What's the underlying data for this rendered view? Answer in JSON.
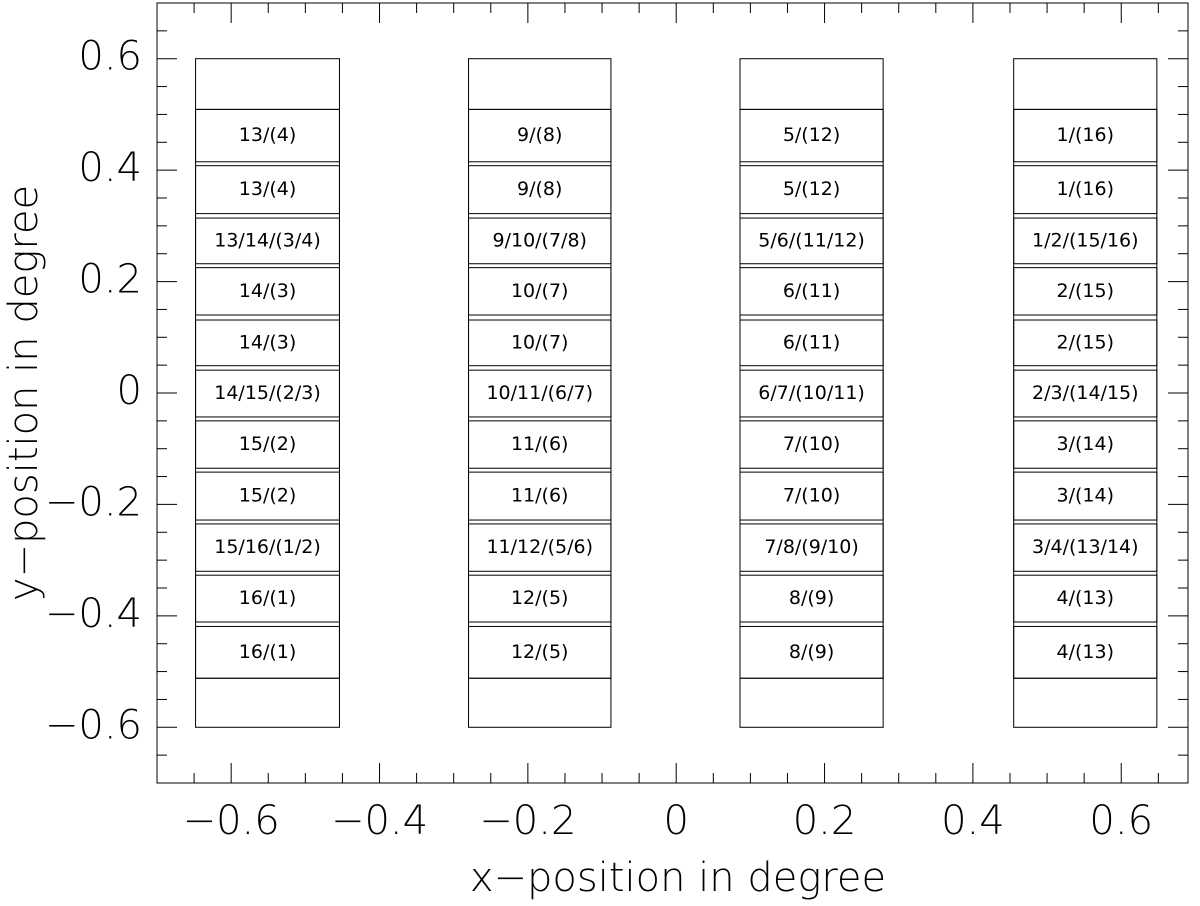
{
  "chart_data": {
    "type": "boxes",
    "xlabel": "x−position in degree",
    "ylabel": "y−position in degree",
    "xlim": [
      -0.7,
      0.69
    ],
    "ylim": [
      -0.7,
      0.7
    ],
    "xticks": [
      {
        "value": -0.6,
        "label": "−0.6"
      },
      {
        "value": -0.4,
        "label": "−0.4"
      },
      {
        "value": -0.2,
        "label": "−0.2"
      },
      0,
      0.2,
      0.4,
      0.6
    ],
    "yticks": [
      {
        "value": -0.6,
        "label": "−0.6"
      },
      {
        "value": -0.4,
        "label": "−0.4"
      },
      {
        "value": -0.2,
        "label": "−0.2"
      },
      0,
      0.2,
      0.4,
      0.6
    ],
    "xminorticks": [
      -0.65,
      -0.55,
      -0.5,
      -0.45,
      -0.35,
      -0.3,
      -0.25,
      -0.15,
      -0.1,
      -0.05,
      0.05,
      0.1,
      0.15,
      0.25,
      0.3,
      0.35,
      0.45,
      0.5,
      0.55,
      0.65
    ],
    "yminorticks": [
      -0.65,
      -0.55,
      -0.5,
      -0.45,
      -0.35,
      -0.3,
      -0.25,
      -0.15,
      -0.1,
      -0.05,
      0.05,
      0.1,
      0.15,
      0.25,
      0.3,
      0.35,
      0.45,
      0.5,
      0.55,
      0.65
    ],
    "column_y": [
      -0.6,
      0.6
    ],
    "inner_lines": [
      0.509,
      -0.512
    ],
    "rows": [
      [
        0.509,
        0.415
      ],
      [
        0.408,
        0.322
      ],
      [
        0.314,
        0.232
      ],
      [
        0.225,
        0.14
      ],
      [
        0.131,
        0.049
      ],
      [
        0.041,
        -0.043
      ],
      [
        -0.05,
        -0.135
      ],
      [
        -0.142,
        -0.228
      ],
      [
        -0.235,
        -0.32
      ],
      [
        -0.327,
        -0.411
      ],
      [
        -0.419,
        -0.512
      ]
    ],
    "columns": [
      {
        "x": [
          -0.648,
          -0.454
        ],
        "labels": [
          "13/(4)",
          "13/(4)",
          "13/14/(3/4)",
          "14/(3)",
          "14/(3)",
          "14/15/(2/3)",
          "15/(2)",
          "15/(2)",
          "15/16/(1/2)",
          "16/(1)",
          "16/(1)"
        ]
      },
      {
        "x": [
          -0.28,
          -0.088
        ],
        "labels": [
          "9/(8)",
          "9/(8)",
          "9/10/(7/8)",
          "10/(7)",
          "10/(7)",
          "10/11/(6/7)",
          "11/(6)",
          "11/(6)",
          "11/12/(5/6)",
          "12/(5)",
          "12/(5)"
        ]
      },
      {
        "x": [
          0.086,
          0.279
        ],
        "labels": [
          "5/(12)",
          "5/(12)",
          "5/6/(11/12)",
          "6/(11)",
          "6/(11)",
          "6/7/(10/11)",
          "7/(10)",
          "7/(10)",
          "7/8/(9/10)",
          "8/(9)",
          "8/(9)"
        ]
      },
      {
        "x": [
          0.455,
          0.648
        ],
        "labels": [
          "1/(16)",
          "1/(16)",
          "1/2/(15/16)",
          "2/(15)",
          "2/(15)",
          "2/3/(14/15)",
          "3/(14)",
          "3/(14)",
          "3/4/(13/14)",
          "4/(13)",
          "4/(13)"
        ]
      }
    ]
  }
}
